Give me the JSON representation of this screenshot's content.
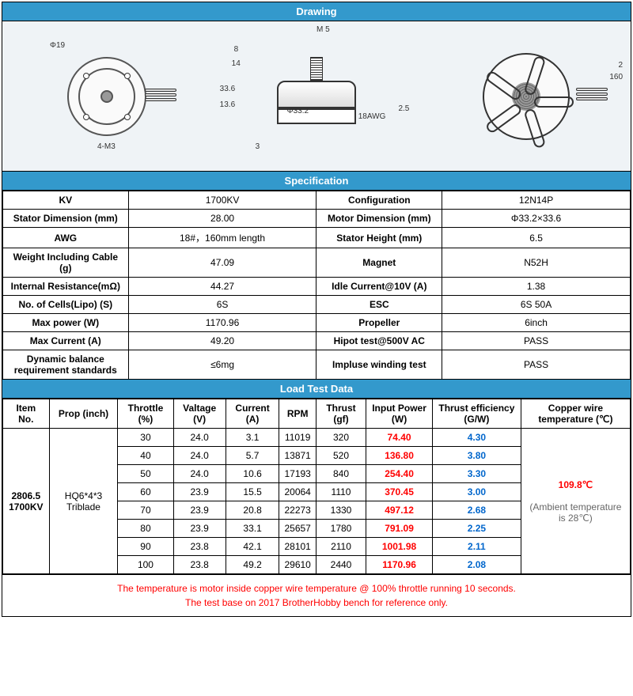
{
  "sections": {
    "drawing": "Drawing",
    "spec": "Specification",
    "load": "Load Test Data"
  },
  "drawing_labels": {
    "d19": "Φ19",
    "m3": "4-M3",
    "m5": "M 5",
    "h8": "8",
    "h14": "14",
    "h336": "33.6",
    "h136": "13.6",
    "d332": "Φ33.2",
    "awg18": "18AWG",
    "l25": "2.5",
    "l3": "3",
    "h2": "2",
    "l160": "160"
  },
  "spec": [
    [
      "KV",
      "1700KV",
      "Configuration",
      "12N14P"
    ],
    [
      "Stator Dimension (mm)",
      "28.00",
      "Motor Dimension (mm)",
      "Φ33.2×33.6"
    ],
    [
      "AWG",
      "18#，160mm length",
      "Stator Height (mm)",
      "6.5"
    ],
    [
      "Weight Including Cable (g)",
      "47.09",
      "Magnet",
      "N52H"
    ],
    [
      "Internal Resistance(mΩ)",
      "44.27",
      "Idle Current@10V (A)",
      "1.38"
    ],
    [
      "No. of Cells(Lipo) (S)",
      "6S",
      "ESC",
      "6S 50A"
    ],
    [
      "Max power (W)",
      "1170.96",
      "Propeller",
      "6inch"
    ],
    [
      "Max Current (A)",
      "49.20",
      "Hipot test@500V AC",
      "PASS"
    ],
    [
      "Dynamic balance requirement standards",
      "≤6mg",
      "Impluse winding test",
      "PASS"
    ]
  ],
  "load_headers": [
    "Item No.",
    "Prop (inch)",
    "Throttle (%)",
    "Valtage (V)",
    "Current (A)",
    "RPM",
    "Thrust   (gf)",
    "Input Power (W)",
    "Thrust efficiency (G/W)",
    "Copper wire temperature (℃)"
  ],
  "load_item": "2806.5\n1700KV",
  "load_prop": "HQ6*4*3 Triblade",
  "load_temp_line1": "109.8℃",
  "load_temp_line2": "(Ambient temperature is 28℃)",
  "load_rows": [
    [
      "30",
      "24.0",
      "3.1",
      "11019",
      "320",
      "74.40",
      "4.30"
    ],
    [
      "40",
      "24.0",
      "5.7",
      "13871",
      "520",
      "136.80",
      "3.80"
    ],
    [
      "50",
      "24.0",
      "10.6",
      "17193",
      "840",
      "254.40",
      "3.30"
    ],
    [
      "60",
      "23.9",
      "15.5",
      "20064",
      "1110",
      "370.45",
      "3.00"
    ],
    [
      "70",
      "23.9",
      "20.8",
      "22273",
      "1330",
      "497.12",
      "2.68"
    ],
    [
      "80",
      "23.9",
      "33.1",
      "25657",
      "1780",
      "791.09",
      "2.25"
    ],
    [
      "90",
      "23.8",
      "42.1",
      "28101",
      "2110",
      "1001.98",
      "2.11"
    ],
    [
      "100",
      "23.8",
      "49.2",
      "29610",
      "2440",
      "1170.96",
      "2.08"
    ]
  ],
  "footnote1": "The temperature is motor inside copper wire temperature @ 100% throttle running 10 seconds.",
  "footnote2": "The test base on 2017 BrotherHobby bench  for reference only."
}
